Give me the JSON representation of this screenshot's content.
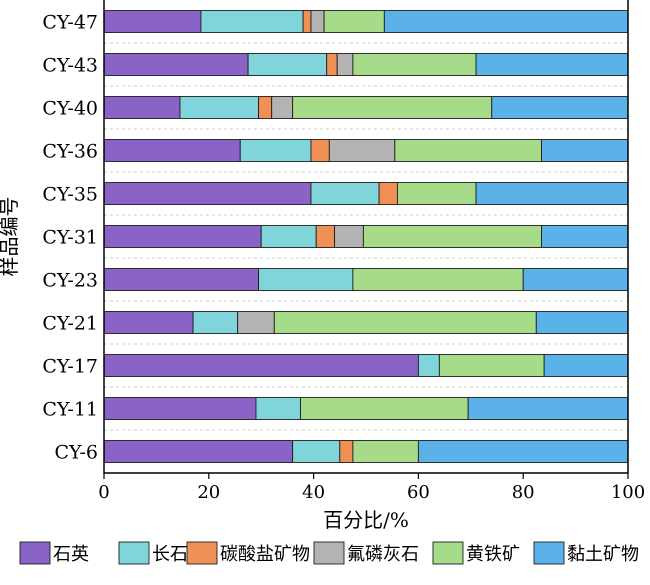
{
  "chart_data": {
    "type": "bar",
    "orientation": "horizontal",
    "stacked": true,
    "title": "",
    "xlabel": "百分比/%",
    "ylabel": "样品编号",
    "xlim": [
      0,
      100
    ],
    "xticks": [
      0,
      20,
      40,
      60,
      80,
      100
    ],
    "grid": "dashed horizontal separators between categories",
    "legend_position": "bottom",
    "categories": [
      "CY-47",
      "CY-43",
      "CY-40",
      "CY-36",
      "CY-35",
      "CY-31",
      "CY-23",
      "CY-21",
      "CY-17",
      "CY-11",
      "CY-6"
    ],
    "series": [
      {
        "name": "石英",
        "color": "#8a63c6",
        "values": [
          18.5,
          27.5,
          14.5,
          26,
          39.5,
          30,
          29.5,
          17,
          60,
          29,
          36
        ]
      },
      {
        "name": "长石",
        "color": "#7fd5d9",
        "values": [
          19.5,
          15,
          15,
          13.5,
          13,
          10.5,
          18,
          8.5,
          4,
          8.5,
          9
        ]
      },
      {
        "name": "碳酸盐矿物",
        "color": "#f09055",
        "values": [
          1.5,
          2,
          2.5,
          3.5,
          3.5,
          3.5,
          0,
          0,
          0,
          0,
          2.5
        ]
      },
      {
        "name": "氟磷灰石",
        "color": "#b3b3b3",
        "values": [
          2.5,
          3,
          4,
          12.5,
          0,
          5.5,
          0,
          7,
          0,
          0,
          0
        ]
      },
      {
        "name": "黄铁矿",
        "color": "#a6db8a",
        "values": [
          11.5,
          23.5,
          38,
          28,
          15,
          34,
          32.5,
          50,
          20,
          32,
          12.5
        ]
      },
      {
        "name": "黏土矿物",
        "color": "#5bb2e8",
        "values": [
          46.5,
          29,
          26,
          16.5,
          29,
          16.5,
          20,
          17.5,
          16,
          30.5,
          40
        ]
      }
    ]
  }
}
